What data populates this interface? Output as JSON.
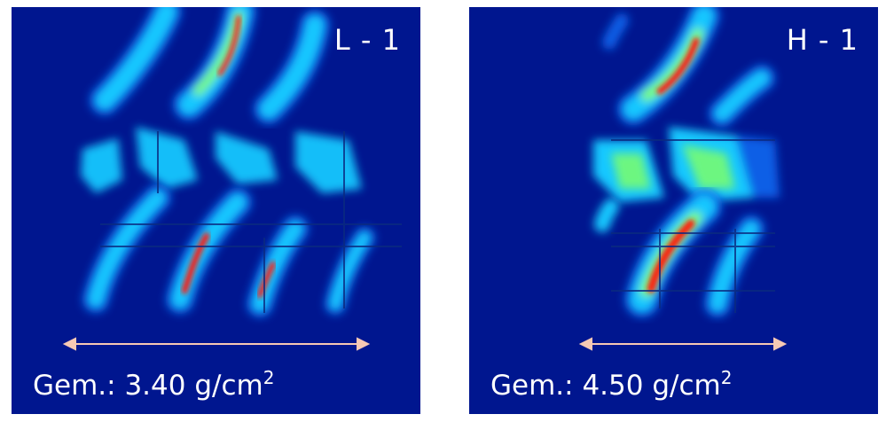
{
  "panels": [
    {
      "label": "L - 1",
      "density_prefix": "Gem.:",
      "density_value": "3.40",
      "density_unit": "g/cm",
      "density_exp": "2"
    },
    {
      "label": "H - 1",
      "density_prefix": "Gem.:",
      "density_value": "4.50",
      "density_unit": "g/cm",
      "density_exp": "2"
    }
  ],
  "colors": {
    "background": "#00168f",
    "low": "#0a5fe6",
    "mid": "#19c8ff",
    "high": "#7dff6a",
    "peak": "#ff1f0f",
    "arrow": "#f6c9b4"
  }
}
